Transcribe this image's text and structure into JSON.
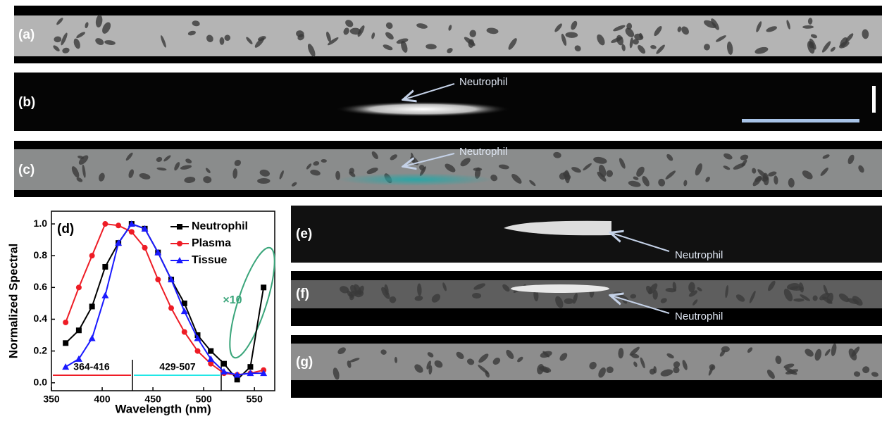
{
  "panels": [
    {
      "label": "(a)"
    },
    {
      "label": "(b)",
      "annotation": "Neutrophil"
    },
    {
      "label": "(c)",
      "annotation": "Neutrophil"
    },
    {
      "label": "(e)",
      "annotation": "Neutrophil"
    },
    {
      "label": "(f)",
      "annotation": "Neutrophil"
    },
    {
      "label": "(g)"
    }
  ],
  "chart_data": {
    "type": "line",
    "panel_label": "(d)",
    "x_label": "Wavelength (nm)",
    "y_label": "Normalized Spectral",
    "x": [
      364,
      377,
      390,
      403,
      416,
      429,
      442,
      455,
      468,
      481,
      494,
      507,
      520,
      533,
      546,
      559
    ],
    "series": [
      {
        "name": "Neutrophil",
        "color": "#000000",
        "marker": "square",
        "values": [
          0.25,
          0.33,
          0.48,
          0.73,
          0.88,
          1.0,
          0.97,
          0.82,
          0.65,
          0.5,
          0.3,
          0.2,
          0.12,
          0.02,
          0.1,
          0.6
        ]
      },
      {
        "name": "Plasma",
        "color": "#ee1c25",
        "marker": "circle",
        "values": [
          0.38,
          0.6,
          0.8,
          1.0,
          0.99,
          0.95,
          0.85,
          0.65,
          0.47,
          0.32,
          0.2,
          0.12,
          0.06,
          0.05,
          0.06,
          0.08
        ]
      },
      {
        "name": "Tissue",
        "color": "#1a1aff",
        "marker": "triangle",
        "values": [
          0.1,
          0.15,
          0.28,
          0.55,
          0.88,
          1.0,
          0.97,
          0.82,
          0.65,
          0.45,
          0.28,
          0.15,
          0.07,
          0.05,
          0.06,
          0.06
        ]
      }
    ],
    "xlim": [
      350,
      570
    ],
    "xticks": [
      350,
      400,
      450,
      500,
      550
    ],
    "ylim": [
      -0.05,
      1.08
    ],
    "yticks": [
      {
        "value": 0,
        "label": "0.0"
      },
      0.2,
      0.4,
      0.6,
      0.8,
      {
        "value": 1,
        "label": "1.0"
      }
    ],
    "annotations": [
      "×10",
      "364-416",
      "429-507"
    ],
    "legend": "upper right"
  }
}
